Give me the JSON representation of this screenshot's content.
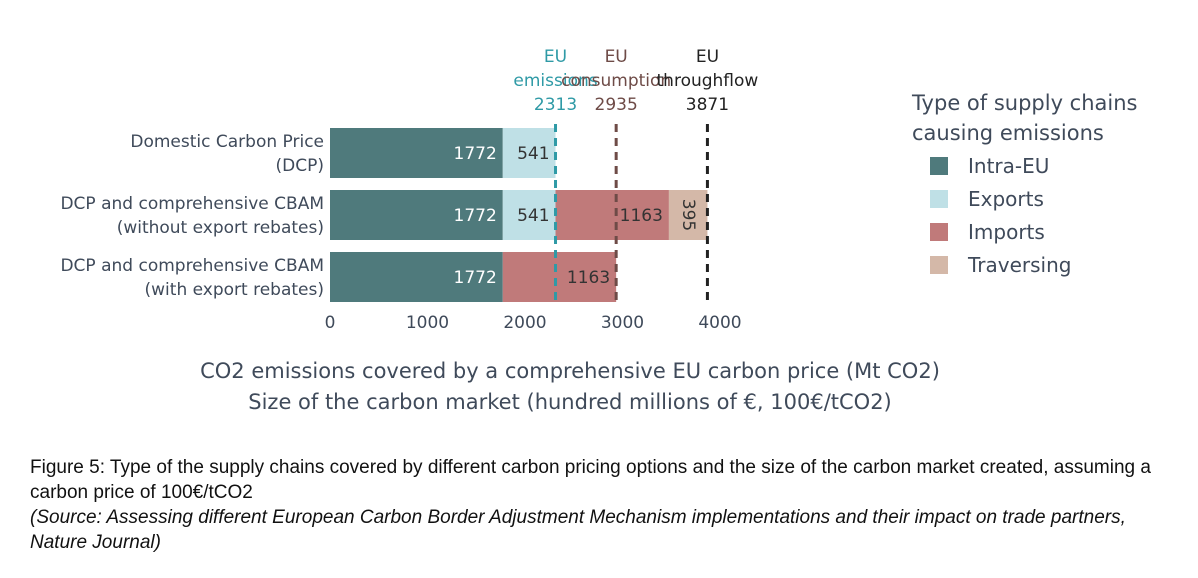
{
  "chart_data": {
    "type": "bar",
    "orientation": "horizontal",
    "stacked": true,
    "categories": [
      [
        "Domestic Carbon Price",
        "(DCP)"
      ],
      [
        "DCP and comprehensive CBAM",
        "(without export rebates)"
      ],
      [
        "DCP and comprehensive CBAM",
        "(with export rebates)"
      ]
    ],
    "series": [
      {
        "name": "Intra-EU",
        "values": [
          1772,
          1772,
          1772
        ],
        "labels": [
          "1772",
          "1772",
          "1772"
        ],
        "color": "#4f7a7c"
      },
      {
        "name": "Exports",
        "values": [
          541,
          541,
          0
        ],
        "labels": [
          "541",
          "541",
          ""
        ],
        "color": "#bfe0e6"
      },
      {
        "name": "Imports",
        "values": [
          0,
          1163,
          1163
        ],
        "labels": [
          "",
          "1163",
          "1163"
        ],
        "color": "#c07a7a"
      },
      {
        "name": "Traversing",
        "values": [
          0,
          395,
          0
        ],
        "labels": [
          "",
          "395",
          ""
        ],
        "color": "#d4b8a8"
      }
    ],
    "xlim": [
      0,
      4000
    ],
    "xticks": [
      0,
      1000,
      2000,
      3000,
      4000
    ],
    "xlabel": [
      "CO2 emissions covered by a comprehensive EU carbon price (Mt CO2)",
      "Size of the carbon market (hundred millions of €, 100€/tCO2)"
    ],
    "reference_lines": [
      {
        "label": [
          "EU",
          "emissions"
        ],
        "value_label": "2313",
        "x": 2313,
        "color": "#2f9aa6"
      },
      {
        "label": [
          "EU",
          "consumption"
        ],
        "value_label": "2935",
        "x": 2935,
        "color": "#6e4b47"
      },
      {
        "label": [
          "EU",
          "throughflow"
        ],
        "value_label": "3871",
        "x": 3871,
        "color": "#222222"
      }
    ],
    "legend": {
      "title": [
        "Type of supply chains",
        "causing emissions"
      ],
      "position": "right"
    }
  },
  "caption": {
    "main": "Figure 5: Type of the supply chains covered by different carbon pricing options and the size of the carbon market created, assuming a carbon price of 100€/tCO2",
    "source": "(Source: Assessing different European Carbon Border Adjustment Mechanism implementations and their impact on trade partners, Nature Journal)"
  }
}
